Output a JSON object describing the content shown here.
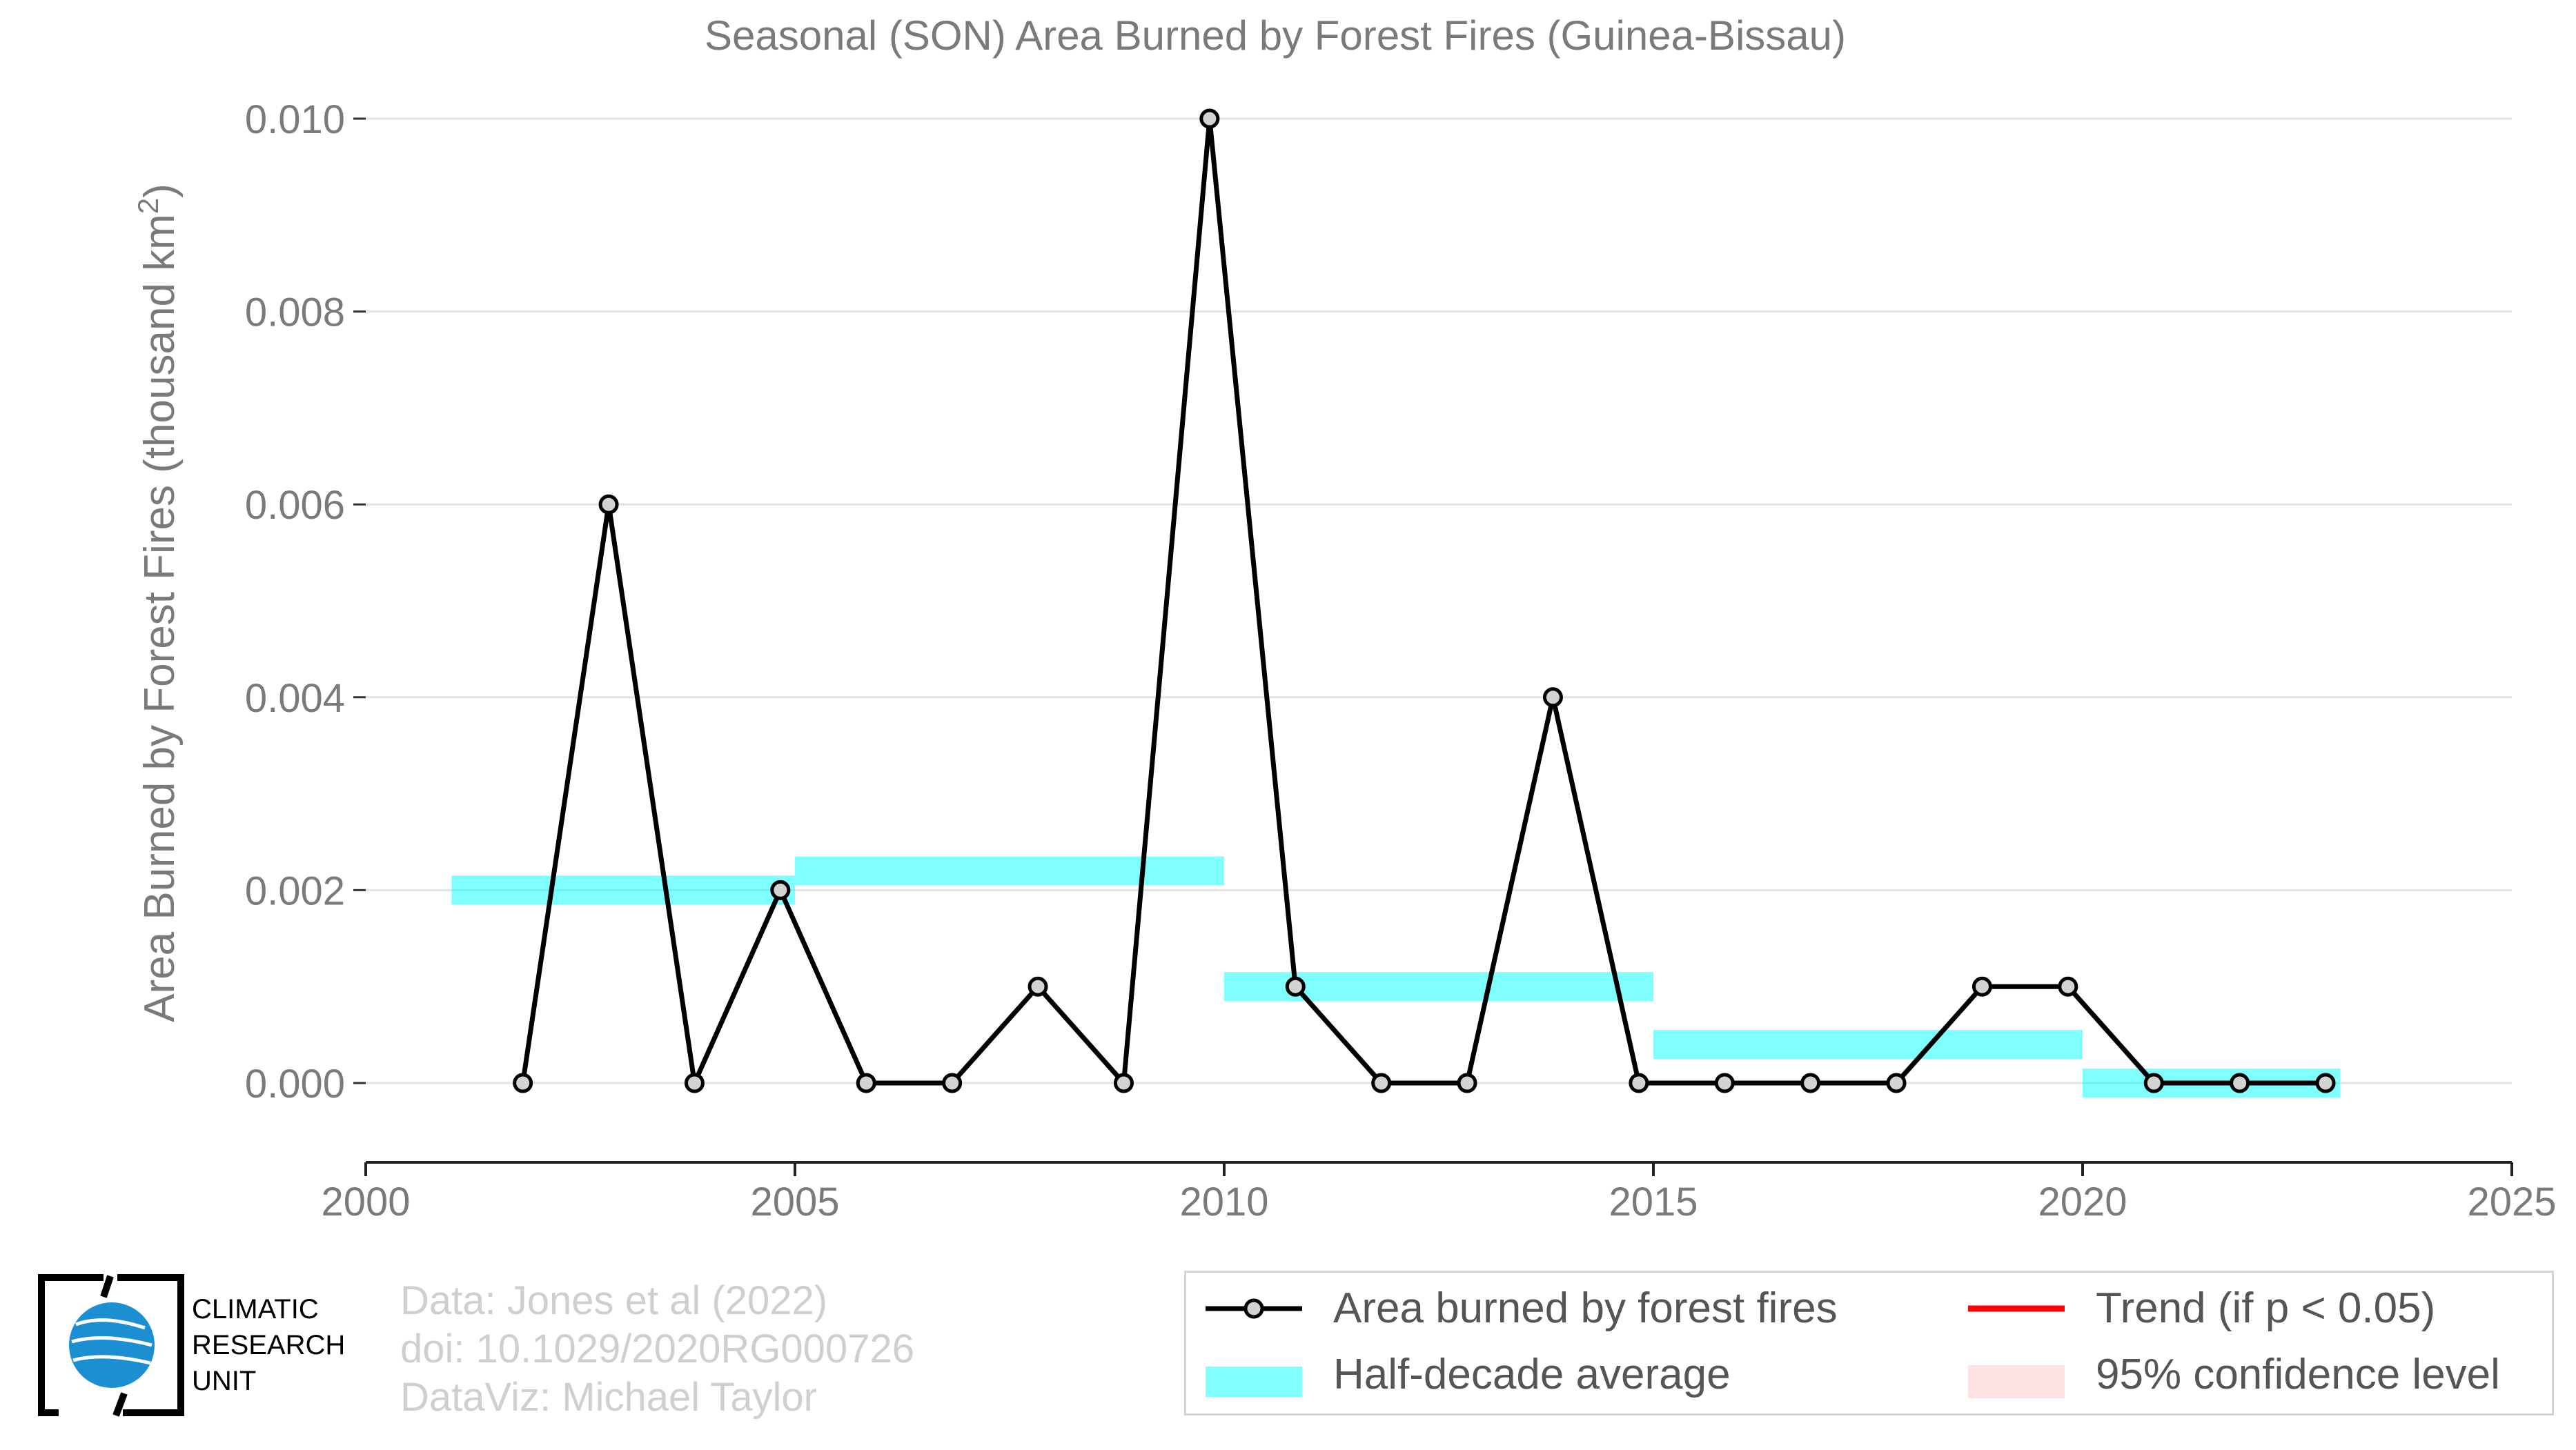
{
  "chart_data": {
    "type": "line",
    "title": "Seasonal (SON) Area Burned by Forest Fires (Guinea-Bissau)",
    "xlabel": "",
    "ylabel": "Area Burned by Forest Fires (thousand km²)",
    "xlim": [
      2000,
      2025
    ],
    "ylim": [
      -0.0008,
      0.0104
    ],
    "x_ticks": [
      2000,
      2005,
      2010,
      2015,
      2020,
      2025
    ],
    "x_tick_labels": [
      "2000",
      "2005",
      "2010",
      "2015",
      "2020",
      "2025"
    ],
    "y_ticks": [
      0.0,
      0.002,
      0.004,
      0.006,
      0.008,
      0.01
    ],
    "y_tick_labels": [
      "0.000",
      "0.002",
      "0.004",
      "0.006",
      "0.008",
      "0.010"
    ],
    "grid": "horizontal",
    "series": [
      {
        "name": "Area burned by forest fires",
        "type": "line",
        "color": "#000000",
        "x": [
          2001.83,
          2002.83,
          2003.83,
          2004.83,
          2005.83,
          2006.83,
          2007.83,
          2008.83,
          2009.83,
          2010.83,
          2011.83,
          2012.83,
          2013.83,
          2014.83,
          2015.83,
          2016.83,
          2017.83,
          2018.83,
          2019.83,
          2020.83,
          2021.83,
          2022.83
        ],
        "values": [
          0.0,
          0.006,
          0.0,
          0.002,
          0.0,
          0.0,
          0.001,
          0.0,
          0.01,
          0.001,
          0.0,
          0.0,
          0.004,
          0.0,
          0.0,
          0.0,
          0.0,
          0.001,
          0.001,
          0.0,
          0.0,
          0.0
        ]
      },
      {
        "name": "Half-decade average",
        "type": "step",
        "color": "#00ffff",
        "segments": [
          {
            "x0": 2001.0,
            "x1": 2005.0,
            "value": 0.002
          },
          {
            "x0": 2005.0,
            "x1": 2010.0,
            "value": 0.0022
          },
          {
            "x0": 2010.0,
            "x1": 2015.0,
            "value": 0.001
          },
          {
            "x0": 2015.0,
            "x1": 2020.0,
            "value": 0.0004
          },
          {
            "x0": 2020.0,
            "x1": 2023.0,
            "value": 0.0
          }
        ]
      }
    ],
    "legend": {
      "placement": "bottom-right",
      "items": [
        {
          "label": "Area burned by forest fires",
          "symbol": "line-point",
          "color": "#000000"
        },
        {
          "label": "Trend (if p < 0.05)",
          "symbol": "line",
          "color": "#ff0000"
        },
        {
          "label": "Half-decade average",
          "symbol": "band",
          "color": "#00ffff"
        },
        {
          "label": "95% confidence level",
          "symbol": "band",
          "color": "#ffb6b6"
        }
      ]
    }
  },
  "credits": {
    "line1": "Data: Jones et al (2022)",
    "line2": "doi: 10.1029/2020RG000726",
    "line3": "DataViz: Michael Taylor"
  },
  "logo": {
    "line1": "CLIMATIC",
    "line2": "RESEARCH",
    "line3": "UNIT"
  }
}
